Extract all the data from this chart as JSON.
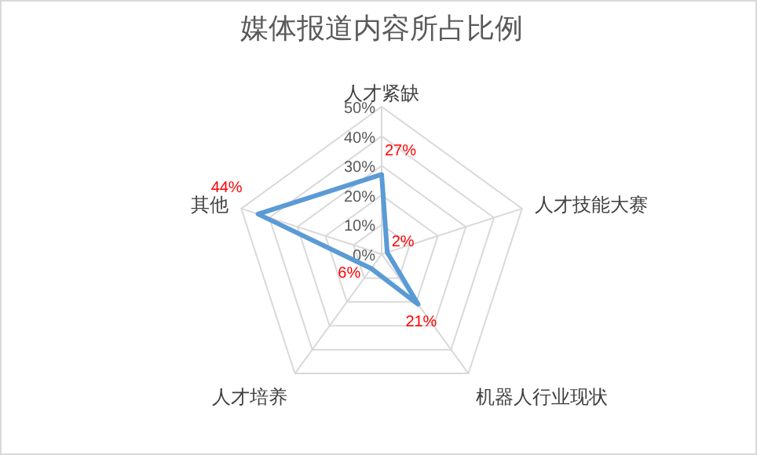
{
  "chart_data": {
    "type": "radar",
    "title": "媒体报道内容所占比例",
    "categories": [
      "人才紧缺",
      "人才技能大赛",
      "机器人行业现状",
      "人才培养",
      "其他"
    ],
    "series": [
      {
        "color": "#5b9bd5",
        "values": [
          27,
          2,
          21,
          6,
          44
        ]
      }
    ],
    "ylim": [
      0,
      50
    ],
    "yticks": [
      {
        "value": 0,
        "label": "0%"
      },
      {
        "value": 10,
        "label": "10%"
      },
      {
        "value": 20,
        "label": "20%"
      },
      {
        "value": 30,
        "label": "30%"
      },
      {
        "value": 40,
        "label": "40%"
      },
      {
        "value": 50,
        "label": "50%"
      }
    ],
    "value_labels": [
      "27%",
      "2%",
      "21%",
      "6%",
      "44%"
    ],
    "grid": true,
    "marker": "none"
  }
}
